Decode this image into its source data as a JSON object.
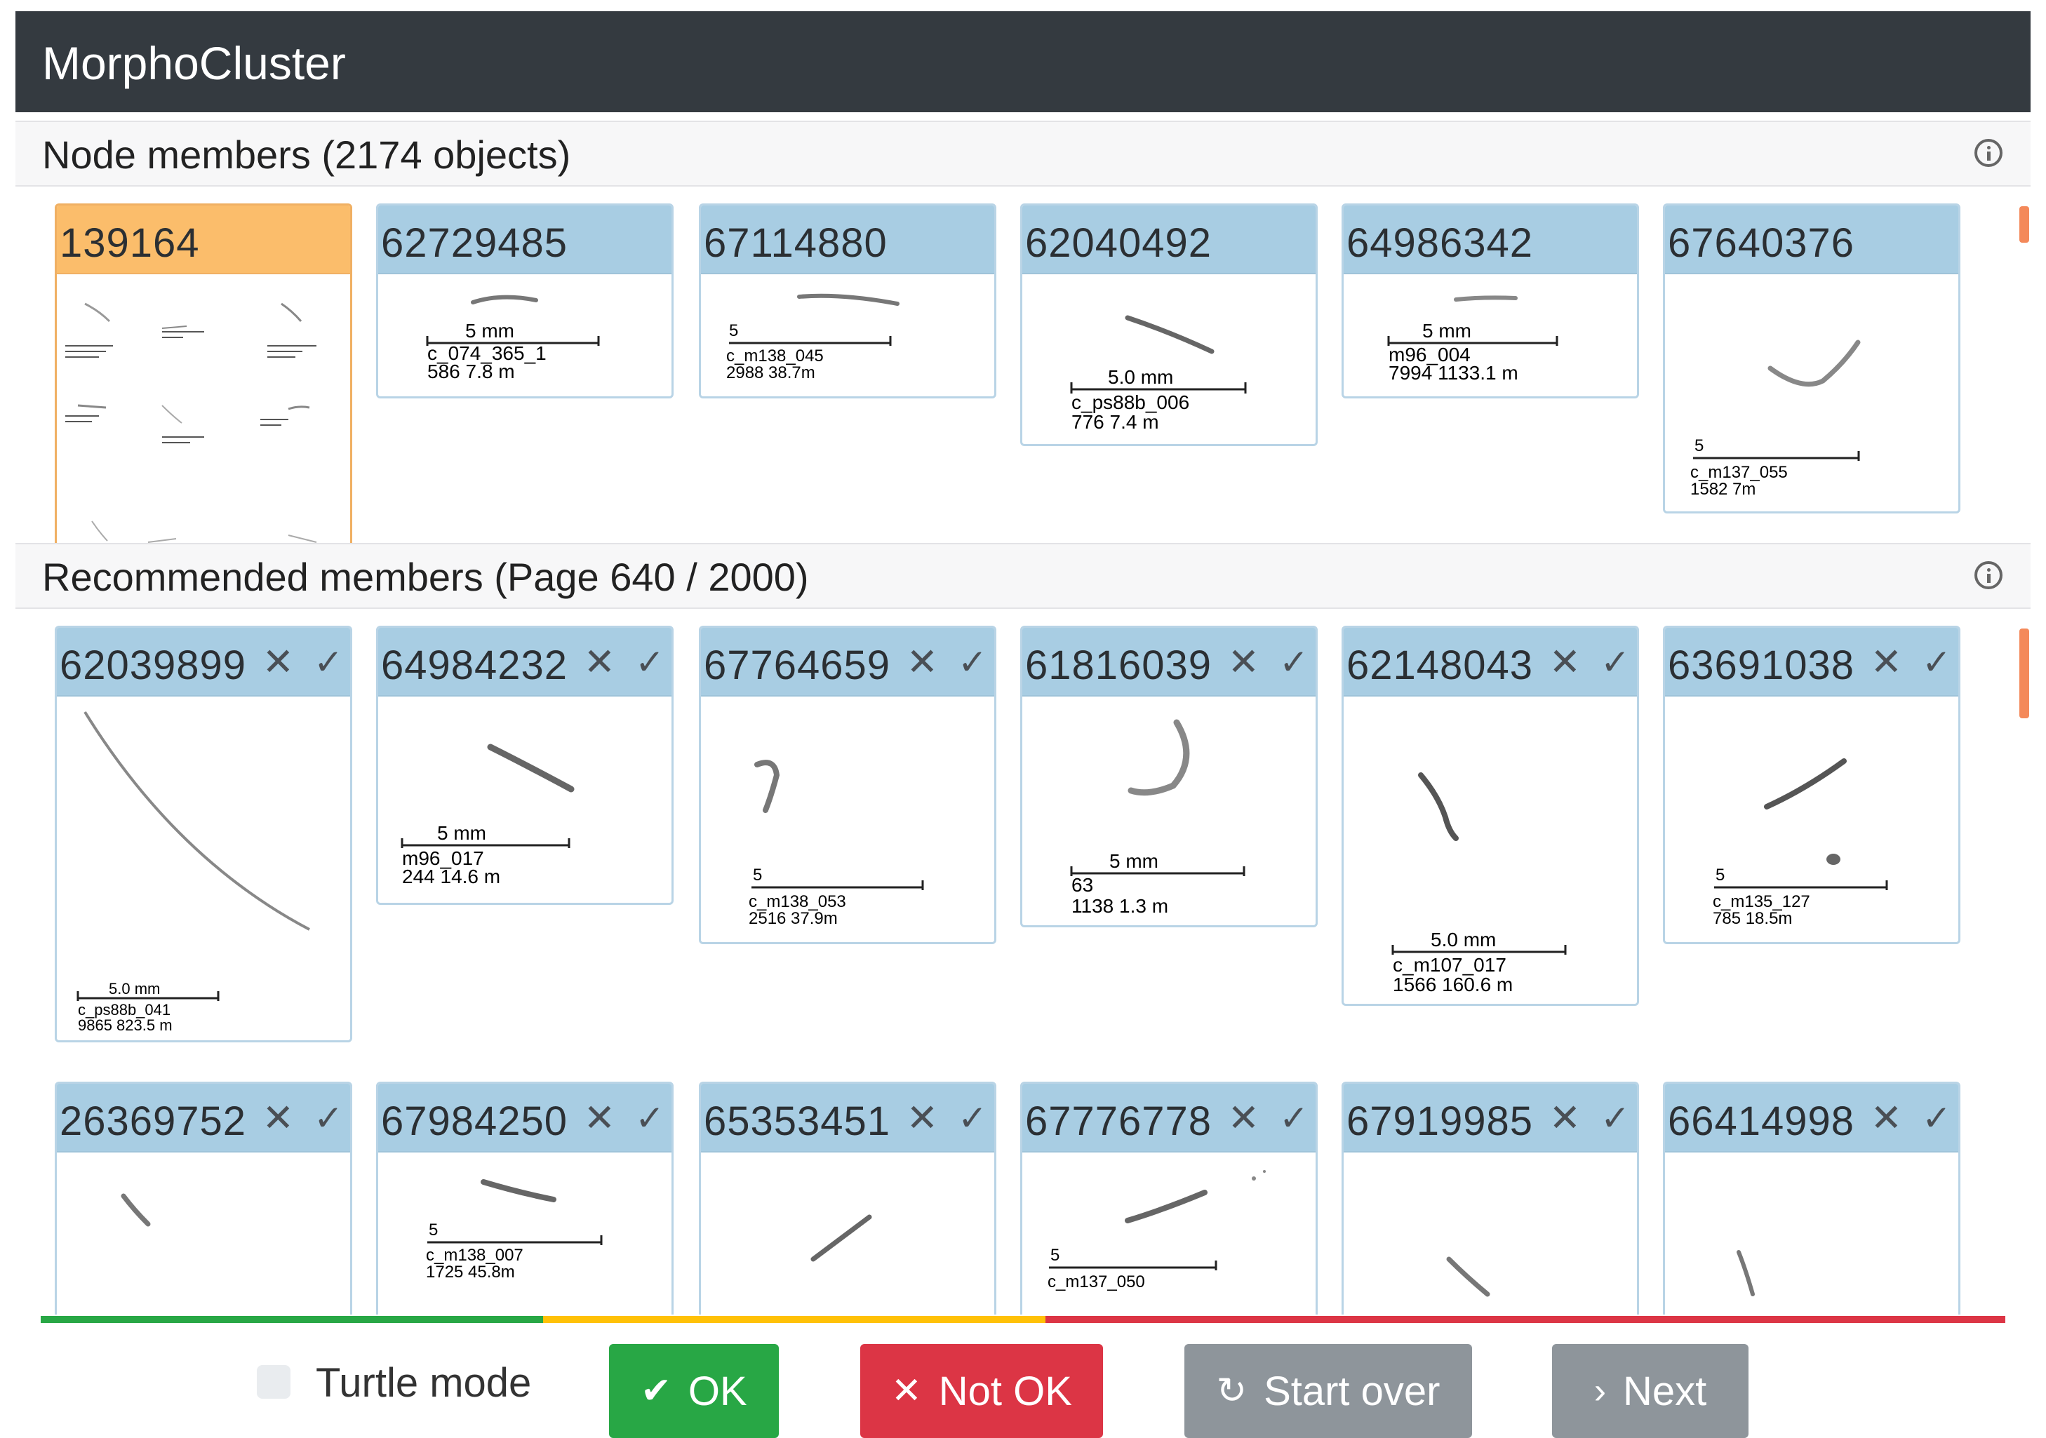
{
  "app": {
    "title": "MorphoCluster"
  },
  "node_members": {
    "title": "Node members (2174 objects)",
    "cards": [
      {
        "id": "139164",
        "selected": true
      },
      {
        "id": "62729485",
        "label1": "5 mm",
        "label2": "c_074_365_1",
        "label3": "586   7.8 m"
      },
      {
        "id": "67114880",
        "label1": "5",
        "label2": "c_m138_045",
        "label3": "2988 38.7m"
      },
      {
        "id": "62040492",
        "label1": "5.0 mm",
        "label2": "c_ps88b_006",
        "label3": "776   7.4 m"
      },
      {
        "id": "64986342",
        "label1": "5 mm",
        "label2": "m96_004",
        "label3": "7994   1133.1 m"
      },
      {
        "id": "67640376",
        "label1": "5",
        "label2": "c_m137_055",
        "label3": "1582 7m"
      }
    ]
  },
  "recommended_members": {
    "title": "Recommended members (Page 640 / 2000)",
    "row1": [
      {
        "id": "62039899",
        "label1": "5.0 mm",
        "label2": "c_ps88b_041",
        "label3": "9865   823.5 m"
      },
      {
        "id": "64984232",
        "label1": "5 mm",
        "label2": "m96_017",
        "label3": "244   14.6 m"
      },
      {
        "id": "67764659",
        "label1": "5",
        "label2": "c_m138_053",
        "label3": "2516 37.9m"
      },
      {
        "id": "61816039",
        "label1": "5 mm",
        "label2": "63",
        "label3": "1138   1.3 m"
      },
      {
        "id": "62148043",
        "label1": "5.0 mm",
        "label2": "c_m107_017",
        "label3": "1566   160.6 m"
      },
      {
        "id": "63691038",
        "label1": "5",
        "label2": "c_m135_127",
        "label3": "785 18.5m"
      }
    ],
    "row2": [
      {
        "id": "26369752"
      },
      {
        "id": "67984250",
        "label1": "5",
        "label2": "c_m138_007",
        "label3": "1725 45.8m"
      },
      {
        "id": "65353451"
      },
      {
        "id": "67776778",
        "label1": "5",
        "label2": "c_m137_050"
      },
      {
        "id": "67919985"
      },
      {
        "id": "66414998"
      }
    ],
    "reject_icon": "close-icon",
    "accept_icon": "check-icon"
  },
  "footer": {
    "turtle_mode_label": "Turtle mode",
    "turtle_mode_checked": false,
    "ok_label": "OK",
    "not_ok_label": "Not OK",
    "start_over_label": "Start over",
    "next_label": "Next"
  },
  "colors": {
    "titlebar": "#343a40",
    "card_header": "#a8cde3",
    "selected_header": "#fbbd6b",
    "ok": "#28a745",
    "not_ok": "#dc3545",
    "secondary": "#8e959b",
    "progress_green": "#28a745",
    "progress_yellow": "#ffc107",
    "progress_red": "#dc3545"
  }
}
